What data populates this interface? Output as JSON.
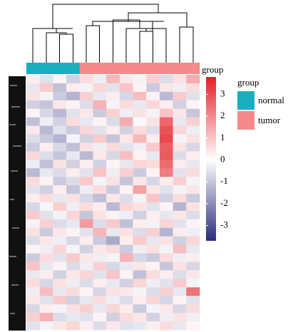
{
  "chart_data": {
    "type": "heatmap",
    "annotation_title": "group",
    "legend_title": "group",
    "groups": [
      {
        "name": "normal",
        "color": "#19afc1"
      },
      {
        "name": "tumor",
        "color": "#f48a89"
      }
    ],
    "column_groups": [
      "normal",
      "normal",
      "normal",
      "normal",
      "tumor",
      "tumor",
      "tumor",
      "tumor",
      "tumor",
      "tumor",
      "tumor",
      "tumor",
      "tumor"
    ],
    "colorscale": {
      "low": "#2b2b7b",
      "mid": "#ffffff",
      "high": "#e41f26"
    },
    "zlim": [
      -3.7,
      3.8
    ],
    "zticks": [
      3,
      2,
      1,
      0,
      -1,
      -2,
      -3
    ],
    "values": [
      [
        0.3,
        -0.5,
        0.2,
        -0.8,
        0.6,
        -0.3,
        1.2,
        0.4,
        -0.2,
        0.8,
        -0.6,
        0.5,
        1.4
      ],
      [
        -0.4,
        0.9,
        -1.1,
        0.3,
        -0.2,
        0.7,
        -0.5,
        1.0,
        0.2,
        -0.9,
        0.4,
        -0.3,
        0.6
      ],
      [
        0.5,
        -0.2,
        -0.9,
        -1.3,
        0.8,
        -0.4,
        0.3,
        -0.7,
        1.1,
        0.2,
        -1.2,
        0.9,
        -0.5
      ],
      [
        -0.8,
        -1.0,
        0.4,
        0.2,
        -0.6,
        1.3,
        -0.2,
        0.6,
        -0.4,
        0.7,
        0.3,
        -0.8,
        0.2
      ],
      [
        0.2,
        -0.7,
        -1.2,
        -0.5,
        0.4,
        -0.9,
        0.8,
        -0.3,
        0.5,
        -0.2,
        1.0,
        0.4,
        -1.0
      ],
      [
        -1.1,
        -0.3,
        -0.8,
        0.6,
        -0.4,
        0.2,
        -0.6,
        1.4,
        -0.1,
        0.5,
        2.6,
        -0.4,
        0.8
      ],
      [
        0.4,
        -1.2,
        -0.5,
        -0.9,
        0.7,
        -0.5,
        0.3,
        -0.8,
        0.6,
        -0.6,
        2.9,
        0.7,
        -0.3
      ],
      [
        -0.6,
        -0.9,
        -1.3,
        -0.2,
        -0.8,
        0.9,
        -1.0,
        0.4,
        1.2,
        0.3,
        3.1,
        -0.2,
        0.5
      ],
      [
        -0.9,
        0.3,
        -0.7,
        -1.1,
        0.5,
        -0.3,
        0.6,
        -0.5,
        -0.3,
        0.9,
        2.7,
        0.5,
        -0.7
      ],
      [
        0.7,
        -0.6,
        -1.0,
        -0.4,
        -1.2,
        0.4,
        -0.7,
        1.1,
        0.2,
        -0.4,
        2.8,
        -0.6,
        0.3
      ],
      [
        -0.3,
        -1.1,
        0.5,
        -0.8,
        0.3,
        -0.8,
        0.2,
        -0.4,
        0.7,
        0.6,
        2.5,
        0.3,
        -0.4
      ],
      [
        -1.2,
        -0.4,
        -0.6,
        0.3,
        -0.5,
        1.0,
        -0.3,
        0.8,
        -0.9,
        0.2,
        2.2,
        -0.5,
        0.6
      ],
      [
        0.6,
        0.2,
        -0.9,
        -0.6,
        0.9,
        -0.2,
        0.5,
        -1.0,
        0.4,
        -0.7,
        0.3,
        0.8,
        -0.2
      ],
      [
        -0.5,
        -0.8,
        0.3,
        -1.0,
        -0.3,
        0.6,
        -0.9,
        0.2,
        1.6,
        0.4,
        -0.5,
        -0.2,
        0.4
      ],
      [
        0.3,
        0.6,
        -0.4,
        0.5,
        -0.7,
        -1.1,
        0.4,
        -0.6,
        -0.2,
        1.0,
        -0.8,
        0.6,
        -0.9
      ],
      [
        -0.7,
        -0.2,
        0.8,
        -0.3,
        0.6,
        0.3,
        -1.2,
        0.7,
        0.5,
        -0.5,
        0.2,
        -1.3,
        0.5
      ],
      [
        0.9,
        -0.5,
        -0.2,
        0.7,
        -1.0,
        0.5,
        0.2,
        -0.3,
        -0.8,
        0.3,
        -0.4,
        0.4,
        -0.6
      ],
      [
        -0.2,
        0.8,
        -0.6,
        -0.4,
        1.7,
        -0.6,
        0.9,
        -1.1,
        0.3,
        -0.2,
        0.7,
        -0.5,
        0.2
      ],
      [
        0.5,
        -0.9,
        0.4,
        0.2,
        -0.5,
        1.2,
        -0.4,
        0.5,
        -0.6,
        0.8,
        -1.3,
        0.3,
        -0.3
      ],
      [
        -0.6,
        0.4,
        -0.3,
        -0.7,
        0.3,
        -0.9,
        -1.5,
        0.3,
        0.9,
        -0.4,
        0.5,
        -0.8,
        0.7
      ],
      [
        0.2,
        -0.3,
        0.7,
        -0.2,
        -0.8,
        0.4,
        0.6,
        -0.9,
        -0.3,
        0.5,
        -0.2,
        1.1,
        -0.4
      ],
      [
        -0.9,
        0.6,
        -0.5,
        0.9,
        0.4,
        -0.3,
        -0.2,
        1.3,
        -0.7,
        -0.9,
        0.6,
        -0.3,
        0.3
      ],
      [
        1.0,
        -0.4,
        0.2,
        -0.6,
        -0.3,
        0.8,
        -0.7,
        -0.4,
        0.4,
        0.2,
        -1.0,
        0.5,
        -0.7
      ],
      [
        -0.4,
        0.3,
        -0.8,
        0.4,
        0.7,
        -0.5,
        1.0,
        0.2,
        -1.1,
        0.6,
        0.3,
        -0.6,
        0.4
      ],
      [
        0.6,
        -0.7,
        0.5,
        -0.3,
        -0.6,
        0.3,
        -0.4,
        -0.8,
        0.7,
        -0.3,
        -0.5,
        0.9,
        -0.2
      ],
      [
        -0.3,
        1.1,
        -0.4,
        0.6,
        0.2,
        -0.7,
        0.5,
        0.4,
        -0.2,
        -0.6,
        0.8,
        -0.4,
        2.4
      ],
      [
        0.4,
        -0.5,
        0.9,
        -0.8,
        -0.4,
        0.6,
        -0.3,
        -0.6,
        0.3,
        0.7,
        -0.7,
        0.2,
        -0.5
      ],
      [
        -0.7,
        0.3,
        -0.2,
        0.5,
        0.8,
        -0.4,
        0.7,
        0.3,
        -0.9,
        -0.2,
        0.4,
        -0.7,
        0.6
      ],
      [
        0.8,
        1.3,
        -0.6,
        -0.4,
        -0.5,
        0.2,
        -0.8,
        0.6,
        0.4,
        -0.8,
        -0.3,
        0.5,
        -0.3
      ],
      [
        -0.5,
        -0.2,
        0.4,
        0.7,
        0.3,
        -0.6,
        0.4,
        -0.5,
        -0.4,
        0.3,
        0.6,
        -0.4,
        0.2
      ]
    ]
  }
}
